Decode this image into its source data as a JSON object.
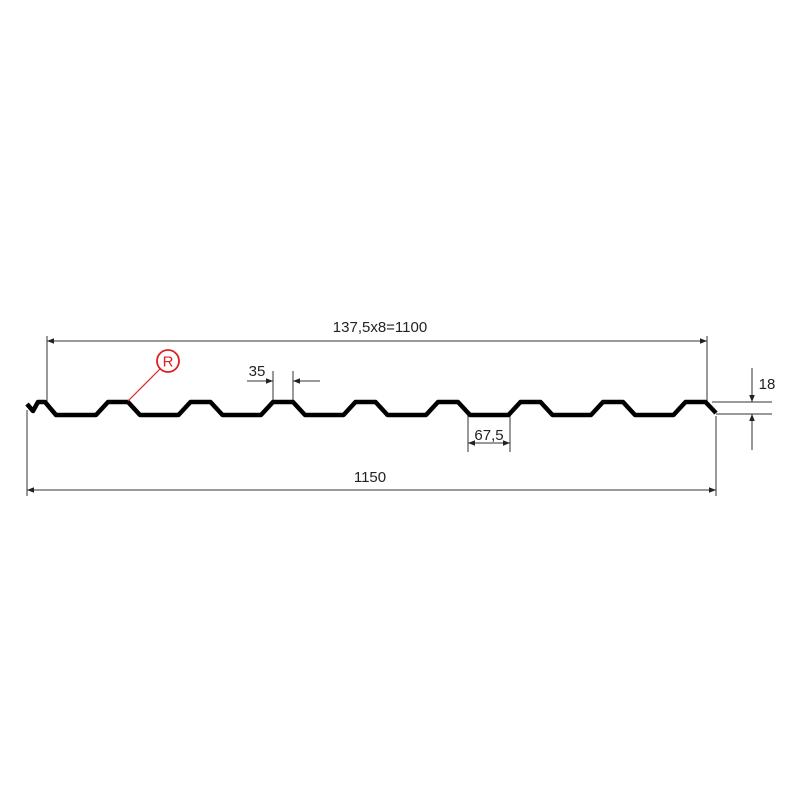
{
  "diagram": {
    "overall_pitch_label": "137,5x8=1100",
    "total_width_label": "1150",
    "crest_width_label": "35",
    "trough_width_label": "67,5",
    "height_label": "18",
    "marker_label": "R",
    "rib_count": 8,
    "colors": {
      "profile": "#000000",
      "dimension": "#333333",
      "marker": "#e02020"
    }
  }
}
